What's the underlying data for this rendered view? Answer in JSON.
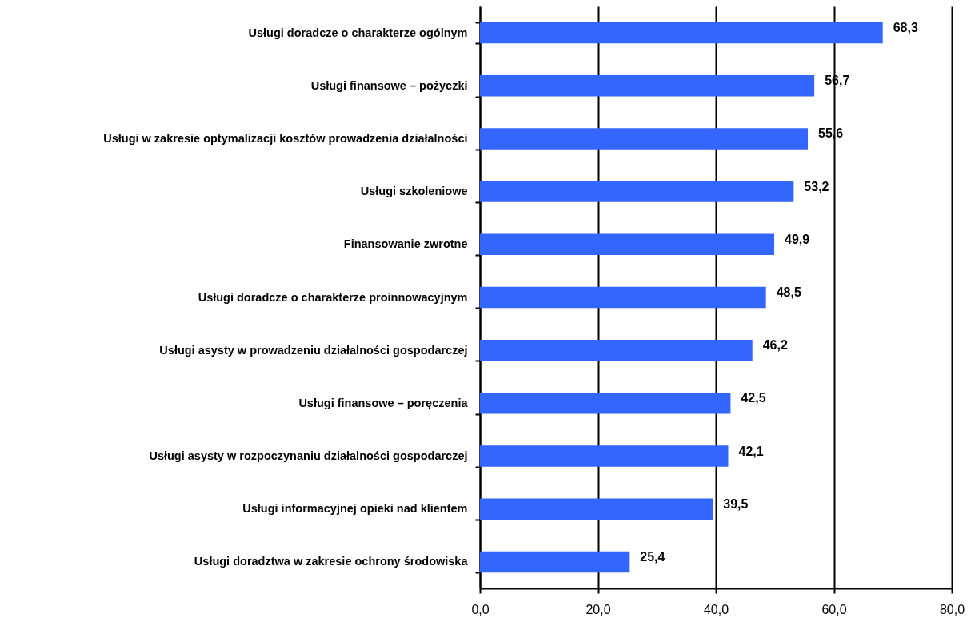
{
  "chart_data": {
    "type": "bar",
    "orientation": "horizontal",
    "categories": [
      "Usługi doradcze o charakterze ogólnym",
      "Usługi finansowe – pożyczki",
      "Usługi w zakresie optymalizacji kosztów prowadzenia działalności",
      "Usługi szkoleniowe",
      "Finansowanie zwrotne",
      "Usługi doradcze o charakterze proinnowacyjnym",
      "Usługi asysty w prowadzeniu działalności gospodarczej",
      "Usługi finansowe – poręczenia",
      "Usługi asysty w rozpoczynaniu działalności gospodarczej",
      "Usługi informacyjnej opieki nad klientem",
      "Usługi doradztwa w zakresie ochrony środowiska"
    ],
    "values": [
      68.3,
      56.7,
      55.6,
      53.2,
      49.9,
      48.5,
      46.2,
      42.5,
      42.1,
      39.5,
      25.4
    ],
    "value_labels": [
      "68,3",
      "56,7",
      "55,6",
      "53,2",
      "49,9",
      "48,5",
      "46,2",
      "42,5",
      "42,1",
      "39,5",
      "25,4"
    ],
    "color": "#3366ff",
    "xlim": [
      0,
      80
    ],
    "xticks": [
      {
        "value": 0,
        "label": "0,0"
      },
      {
        "value": 20,
        "label": "20,0"
      },
      {
        "value": 40,
        "label": "40,0"
      },
      {
        "value": 60,
        "label": "60,0"
      },
      {
        "value": 80,
        "label": "80,0"
      }
    ],
    "grid": "x"
  }
}
